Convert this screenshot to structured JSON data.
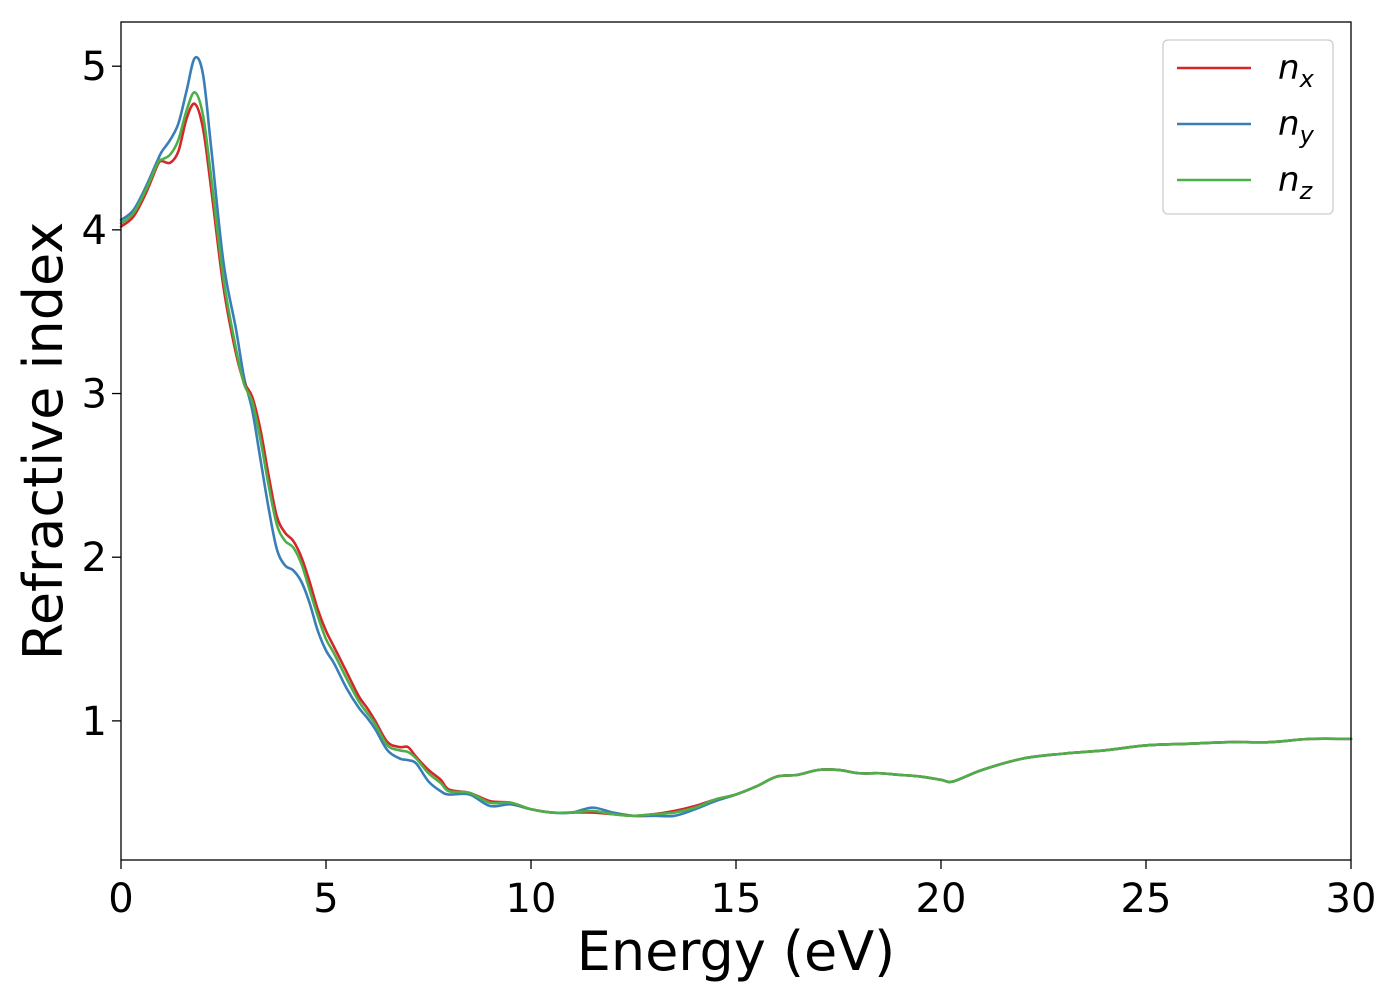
{
  "chart_data": {
    "type": "line",
    "title": "",
    "xlabel": "Energy (eV)",
    "ylabel": "Refractive index",
    "xlim": [
      0,
      30
    ],
    "ylim": [
      0.15,
      5.27
    ],
    "xticks": [
      0,
      5,
      10,
      15,
      20,
      25,
      30
    ],
    "yticks": [
      1,
      2,
      3,
      4,
      5
    ],
    "xtick_labels": [
      "0",
      "5",
      "10",
      "15",
      "20",
      "25",
      "30"
    ],
    "ytick_labels": [
      "1",
      "2",
      "3",
      "4",
      "5"
    ],
    "grid": false,
    "legend_position": "top-right",
    "series": [
      {
        "name": "n",
        "subscript": "x",
        "color": "#d62728",
        "x": [
          0,
          0.3,
          0.6,
          0.9,
          1.0,
          1.2,
          1.4,
          1.6,
          1.8,
          2.0,
          2.2,
          2.5,
          2.8,
          3.0,
          3.2,
          3.4,
          3.6,
          3.8,
          4.0,
          4.2,
          4.4,
          4.6,
          4.8,
          5.0,
          5.2,
          5.5,
          5.8,
          6.0,
          6.2,
          6.5,
          6.8,
          7.0,
          7.2,
          7.5,
          7.8,
          8.0,
          8.5,
          9.0,
          9.5,
          10.0,
          10.5,
          11.0,
          11.5,
          12.0,
          12.5,
          13.0,
          13.5,
          14.0,
          14.5,
          15.0,
          15.5,
          16.0,
          16.5,
          17.0,
          17.5,
          18.0,
          18.5,
          19.0,
          19.5,
          20.0,
          20.3,
          21.0,
          22.0,
          23.0,
          24.0,
          25.0,
          26.0,
          27.0,
          28.0,
          29.0,
          30.0
        ],
        "y": [
          4.02,
          4.08,
          4.22,
          4.4,
          4.42,
          4.41,
          4.48,
          4.68,
          4.77,
          4.62,
          4.25,
          3.65,
          3.25,
          3.07,
          2.98,
          2.78,
          2.5,
          2.25,
          2.15,
          2.1,
          2.0,
          1.85,
          1.68,
          1.55,
          1.45,
          1.3,
          1.15,
          1.08,
          1.0,
          0.87,
          0.84,
          0.84,
          0.78,
          0.7,
          0.64,
          0.58,
          0.56,
          0.51,
          0.5,
          0.46,
          0.44,
          0.44,
          0.44,
          0.43,
          0.42,
          0.43,
          0.45,
          0.48,
          0.52,
          0.55,
          0.6,
          0.66,
          0.67,
          0.7,
          0.7,
          0.68,
          0.68,
          0.67,
          0.66,
          0.64,
          0.63,
          0.7,
          0.77,
          0.8,
          0.82,
          0.85,
          0.86,
          0.87,
          0.87,
          0.89,
          0.89
        ]
      },
      {
        "name": "n",
        "subscript": "y",
        "color": "#3a7eb8",
        "x": [
          0,
          0.3,
          0.6,
          0.9,
          1.0,
          1.2,
          1.4,
          1.6,
          1.8,
          2.0,
          2.2,
          2.5,
          2.8,
          3.0,
          3.2,
          3.4,
          3.6,
          3.8,
          4.0,
          4.2,
          4.4,
          4.6,
          4.8,
          5.0,
          5.2,
          5.5,
          5.8,
          6.0,
          6.2,
          6.5,
          6.8,
          7.0,
          7.2,
          7.5,
          7.8,
          8.0,
          8.5,
          9.0,
          9.5,
          10.0,
          10.5,
          11.0,
          11.5,
          12.0,
          12.5,
          13.0,
          13.5,
          14.0,
          14.5,
          15.0,
          15.5,
          16.0,
          16.5,
          17.0,
          17.5,
          18.0,
          18.5,
          19.0,
          19.5,
          20.0,
          20.3,
          21.0,
          22.0,
          23.0,
          24.0,
          25.0,
          26.0,
          27.0,
          28.0,
          29.0,
          30.0
        ],
        "y": [
          4.06,
          4.12,
          4.26,
          4.43,
          4.48,
          4.55,
          4.65,
          4.85,
          5.05,
          4.95,
          4.5,
          3.8,
          3.4,
          3.1,
          2.9,
          2.6,
          2.3,
          2.05,
          1.95,
          1.92,
          1.85,
          1.72,
          1.55,
          1.43,
          1.35,
          1.2,
          1.08,
          1.02,
          0.95,
          0.82,
          0.77,
          0.76,
          0.74,
          0.63,
          0.57,
          0.55,
          0.55,
          0.48,
          0.49,
          0.46,
          0.44,
          0.44,
          0.47,
          0.44,
          0.42,
          0.42,
          0.42,
          0.46,
          0.51,
          0.55,
          0.6,
          0.66,
          0.67,
          0.7,
          0.7,
          0.68,
          0.68,
          0.67,
          0.66,
          0.64,
          0.63,
          0.7,
          0.77,
          0.8,
          0.82,
          0.85,
          0.86,
          0.87,
          0.87,
          0.89,
          0.89
        ]
      },
      {
        "name": "n",
        "subscript": "z",
        "color": "#4daf4a",
        "x": [
          0,
          0.3,
          0.6,
          0.9,
          1.0,
          1.2,
          1.4,
          1.6,
          1.8,
          2.0,
          2.2,
          2.5,
          2.8,
          3.0,
          3.2,
          3.4,
          3.6,
          3.8,
          4.0,
          4.2,
          4.4,
          4.6,
          4.8,
          5.0,
          5.2,
          5.5,
          5.8,
          6.0,
          6.2,
          6.5,
          6.8,
          7.0,
          7.2,
          7.5,
          7.8,
          8.0,
          8.5,
          9.0,
          9.5,
          10.0,
          10.5,
          11.0,
          11.5,
          12.0,
          12.5,
          13.0,
          13.5,
          14.0,
          14.5,
          15.0,
          15.5,
          16.0,
          16.5,
          17.0,
          17.5,
          18.0,
          18.5,
          19.0,
          19.5,
          20.0,
          20.3,
          21.0,
          22.0,
          23.0,
          24.0,
          25.0,
          26.0,
          27.0,
          28.0,
          29.0,
          30.0
        ],
        "y": [
          4.04,
          4.1,
          4.24,
          4.41,
          4.43,
          4.46,
          4.55,
          4.73,
          4.84,
          4.7,
          4.32,
          3.7,
          3.28,
          3.06,
          2.95,
          2.72,
          2.44,
          2.2,
          2.1,
          2.06,
          1.96,
          1.8,
          1.64,
          1.5,
          1.41,
          1.26,
          1.12,
          1.05,
          0.98,
          0.85,
          0.82,
          0.81,
          0.77,
          0.68,
          0.62,
          0.57,
          0.56,
          0.5,
          0.5,
          0.46,
          0.44,
          0.44,
          0.45,
          0.43,
          0.42,
          0.43,
          0.44,
          0.47,
          0.52,
          0.55,
          0.6,
          0.66,
          0.67,
          0.7,
          0.7,
          0.68,
          0.68,
          0.67,
          0.66,
          0.64,
          0.63,
          0.7,
          0.77,
          0.8,
          0.82,
          0.85,
          0.86,
          0.87,
          0.87,
          0.89,
          0.89
        ]
      }
    ]
  }
}
